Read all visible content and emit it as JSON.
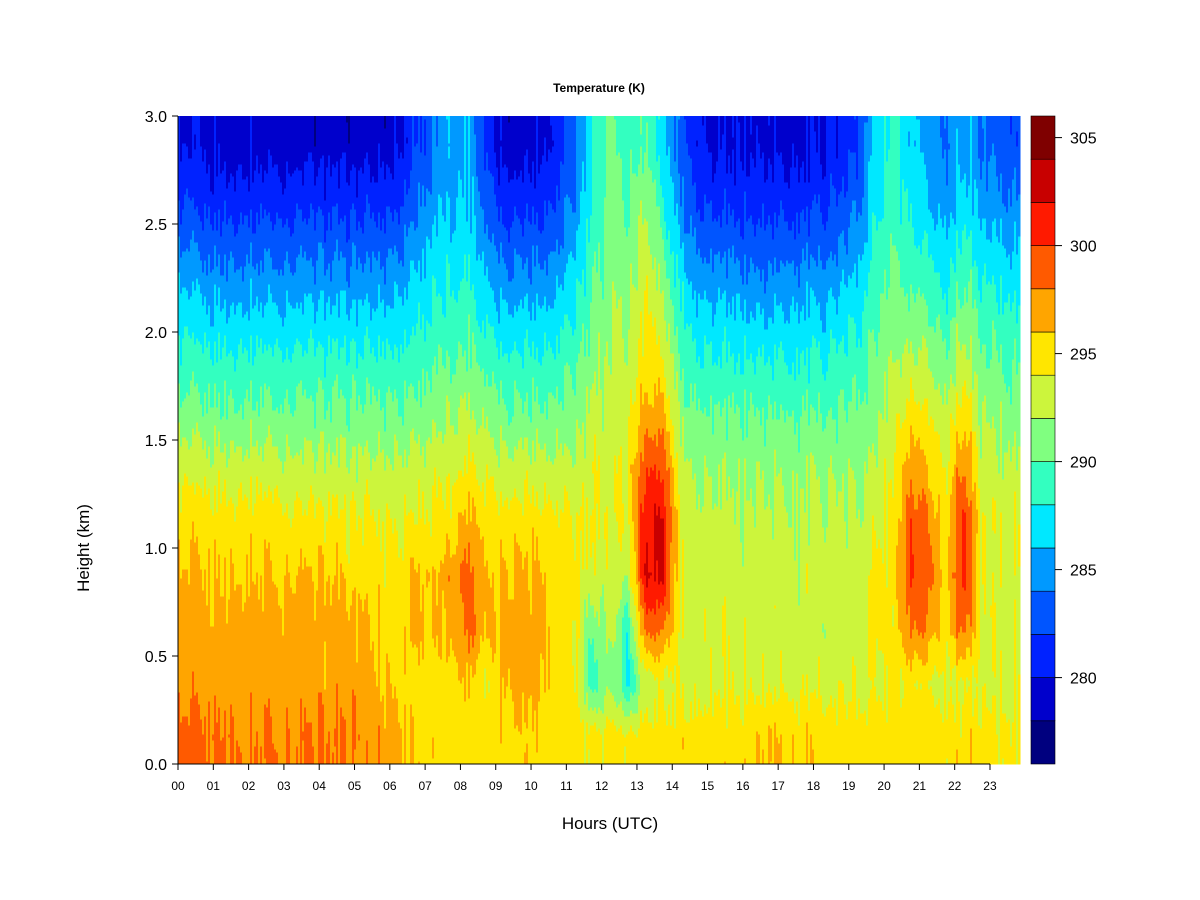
{
  "chart_data": {
    "type": "heatmap",
    "title": "Temperature (K)",
    "xlabel": "Hours (UTC)",
    "ylabel": "Height (km)",
    "xlim": [
      0,
      23.85
    ],
    "ylim": [
      0,
      3.0
    ],
    "grid": false,
    "xtick_values": [
      0,
      1,
      2,
      3,
      4,
      5,
      6,
      7,
      8,
      9,
      10,
      11,
      12,
      13,
      14,
      15,
      16,
      17,
      18,
      19,
      20,
      21,
      22,
      23
    ],
    "xtick_labels": [
      "00",
      "01",
      "02",
      "03",
      "04",
      "05",
      "06",
      "07",
      "08",
      "09",
      "10",
      "11",
      "12",
      "13",
      "14",
      "15",
      "16",
      "17",
      "18",
      "19",
      "20",
      "21",
      "22",
      "23"
    ],
    "ytick_values": [
      0,
      0.5,
      1.0,
      1.5,
      2.0,
      2.5,
      3.0
    ],
    "ytick_labels": [
      "0.0",
      "0.5",
      "1.0",
      "1.5",
      "2.0",
      "2.5",
      "3.0"
    ],
    "colorbar": {
      "placement": "right",
      "range": [
        276,
        306
      ],
      "levels": [
        276,
        278,
        280,
        282,
        284,
        286,
        288,
        290,
        292,
        294,
        296,
        298,
        300,
        302,
        304,
        306
      ],
      "colors": [
        "#00007f",
        "#0000cc",
        "#0022ff",
        "#0055ff",
        "#0099ff",
        "#00e8ff",
        "#33ffc0",
        "#80ff80",
        "#ccf53c",
        "#ffe600",
        "#ffa500",
        "#ff5a00",
        "#ff1a00",
        "#c80000",
        "#7f0000"
      ],
      "tick_values": [
        280,
        285,
        290,
        295,
        300,
        305
      ],
      "tick_labels": [
        "280",
        "285",
        "290",
        "295",
        "300",
        "305"
      ]
    },
    "time_hours": [
      0.25,
      0.75,
      1.25,
      1.75,
      2.25,
      2.75,
      3.25,
      3.75,
      4.25,
      4.75,
      5.25,
      5.75,
      6.25,
      6.75,
      7.25,
      7.75,
      8.25,
      8.75,
      9.25,
      9.75,
      10.25,
      10.75,
      11.25,
      11.75,
      12.25,
      12.75,
      13.25,
      13.75,
      14.25,
      14.75,
      15.25,
      15.75,
      16.25,
      16.75,
      17.25,
      17.75,
      18.25,
      18.75,
      19.25,
      19.75,
      20.25,
      20.75,
      21.25,
      21.75,
      22.25,
      22.75,
      23.25,
      23.75
    ],
    "height_km": [
      0.125,
      0.375,
      0.625,
      0.875,
      1.125,
      1.375,
      1.625,
      1.875,
      2.125,
      2.375,
      2.625,
      2.875
    ],
    "z_by_time_K": [
      [
        298.5,
        297,
        297,
        296,
        295,
        293,
        290.5,
        288.5,
        286.5,
        284,
        281.5,
        279.5
      ],
      [
        298.5,
        297,
        297,
        296,
        295,
        293,
        290.5,
        288.5,
        286,
        283.5,
        281,
        279.5
      ],
      [
        298.5,
        297,
        297,
        296,
        295,
        293,
        290.5,
        288.5,
        286,
        283.5,
        281,
        279
      ],
      [
        298,
        297,
        297,
        296,
        295,
        293,
        290.5,
        288.5,
        286,
        283.5,
        281,
        279
      ],
      [
        298,
        297,
        297,
        296,
        295,
        293,
        290.5,
        288.5,
        286,
        283.5,
        281,
        279
      ],
      [
        298,
        297,
        297,
        296,
        295,
        293,
        290.5,
        288.5,
        286,
        283.5,
        281,
        279
      ],
      [
        298,
        297,
        297,
        296,
        294.5,
        292.5,
        290.5,
        288.5,
        286,
        283.5,
        281,
        278.8
      ],
      [
        298,
        297,
        297,
        296,
        294.5,
        292.5,
        290.5,
        288.5,
        286,
        283.5,
        281,
        279
      ],
      [
        298,
        297,
        297,
        296,
        294.5,
        292.5,
        290.5,
        288.5,
        286,
        283.5,
        281,
        279
      ],
      [
        298,
        297,
        297,
        295.5,
        294.5,
        292.5,
        290.5,
        288.5,
        286,
        283.5,
        281,
        279
      ],
      [
        297.5,
        297,
        296.5,
        295,
        294.5,
        292.5,
        290.5,
        288.5,
        286,
        283.5,
        281,
        279
      ],
      [
        297.5,
        296,
        295.5,
        295,
        294,
        292.5,
        290.5,
        288.5,
        286,
        283.5,
        281,
        279
      ],
      [
        297,
        295.5,
        295,
        295,
        294,
        292.5,
        290.5,
        288.5,
        286.5,
        284,
        281.5,
        279.5
      ],
      [
        295.5,
        295,
        297,
        296.5,
        294.5,
        293,
        291,
        289,
        287.5,
        285.5,
        283.5,
        282
      ],
      [
        295,
        294.5,
        295.5,
        295.5,
        294,
        293,
        291,
        289.5,
        288,
        286.5,
        285,
        283.5
      ],
      [
        295,
        295,
        297,
        297.5,
        295,
        293.5,
        292,
        290,
        288.5,
        287,
        286,
        285.5
      ],
      [
        295,
        296,
        299,
        299,
        297,
        294.5,
        292.5,
        290.5,
        289,
        287.5,
        286.5,
        286
      ],
      [
        295,
        294,
        296,
        296,
        295,
        293.5,
        291.5,
        289.5,
        287,
        285,
        283,
        281
      ],
      [
        295.5,
        296.5,
        297,
        296.5,
        295,
        293,
        290.5,
        288.5,
        286,
        283.5,
        281,
        279
      ],
      [
        295.5,
        297,
        297,
        296.5,
        295,
        293,
        290.5,
        288.5,
        286,
        283.5,
        281,
        279
      ],
      [
        295.5,
        296.5,
        297,
        296.5,
        295,
        293,
        290.5,
        288.5,
        286,
        283.5,
        281,
        279.5
      ],
      [
        295,
        295,
        295,
        295,
        294.5,
        292.5,
        290.5,
        288.5,
        286.5,
        284,
        282,
        280.5
      ],
      [
        295,
        294.5,
        294.5,
        294.5,
        294,
        292.5,
        291,
        289.5,
        288,
        286,
        284.5,
        283.5
      ],
      [
        294.5,
        288.5,
        290,
        293,
        294,
        293.5,
        292.5,
        291,
        290,
        289,
        288,
        287.5
      ],
      [
        295,
        292,
        293,
        293.5,
        294,
        293.5,
        293,
        292.5,
        292,
        291.5,
        291,
        290.5
      ],
      [
        294.5,
        287.5,
        288.5,
        292,
        294,
        294,
        293.5,
        292.5,
        291.5,
        290.5,
        289.5,
        288.5
      ],
      [
        295,
        293,
        299,
        302.5,
        302,
        300,
        297,
        295,
        294.5,
        293.5,
        292,
        290
      ],
      [
        294.5,
        293.5,
        298,
        302,
        302,
        299.5,
        296.5,
        294,
        292,
        290,
        288,
        286.5
      ],
      [
        295,
        293.5,
        293.5,
        293.5,
        293.5,
        292.5,
        291,
        289.5,
        288,
        286,
        284,
        283
      ],
      [
        295,
        293.5,
        293.5,
        293.5,
        293,
        292,
        290.5,
        288.5,
        286.5,
        284,
        282,
        280.5
      ],
      [
        295,
        293.5,
        293.5,
        293,
        292.5,
        291.5,
        290,
        288,
        286,
        283.5,
        281,
        279.5
      ],
      [
        295,
        293.5,
        293.5,
        293,
        292.5,
        291.5,
        290,
        288,
        286,
        283.5,
        281,
        279.5
      ],
      [
        295.5,
        293.5,
        293,
        293,
        292.5,
        291.5,
        290,
        288,
        285.5,
        283,
        281,
        279.5
      ],
      [
        296,
        293.5,
        293,
        293,
        292.5,
        291.5,
        290,
        288,
        285.5,
        283,
        281,
        279.5
      ],
      [
        296,
        293.5,
        293,
        293,
        292.5,
        291.5,
        290,
        288,
        286,
        283.5,
        281,
        279.5
      ],
      [
        295.5,
        293.5,
        293,
        293,
        292.5,
        291.5,
        290,
        288,
        286,
        283.5,
        281,
        279.5
      ],
      [
        295,
        293.5,
        293,
        293,
        292.5,
        291.5,
        290,
        288,
        286,
        283.5,
        281.5,
        280
      ],
      [
        295,
        293.5,
        293,
        293,
        292.5,
        291.5,
        290,
        288.5,
        286.5,
        284,
        282,
        280.5
      ],
      [
        295,
        293.5,
        293,
        293,
        292.5,
        291.5,
        290.5,
        289,
        287.5,
        285.5,
        283.5,
        282
      ],
      [
        295,
        293.5,
        295,
        294.5,
        293.5,
        292.5,
        291.5,
        290.5,
        289.5,
        288.5,
        287.5,
        287
      ],
      [
        295,
        294,
        294.5,
        294.5,
        294.5,
        294,
        293,
        292,
        291,
        290,
        289,
        288.5
      ],
      [
        295,
        294,
        298,
        299.5,
        299,
        297,
        294.5,
        292,
        290,
        288,
        287,
        286
      ],
      [
        295,
        294,
        297.5,
        299,
        298,
        296,
        294,
        292,
        290,
        288,
        286,
        285
      ],
      [
        295,
        293.5,
        295,
        295.5,
        295,
        294,
        292.5,
        290.5,
        288.5,
        286.5,
        285,
        284
      ],
      [
        295,
        294,
        299,
        301.5,
        301,
        298.5,
        295.5,
        293,
        291,
        289,
        287,
        286
      ],
      [
        295,
        293.5,
        294,
        294,
        294,
        293,
        292,
        290.5,
        289,
        287,
        285,
        284
      ],
      [
        294.5,
        293.5,
        293.5,
        293.5,
        293.5,
        292.5,
        291.5,
        290,
        288.5,
        286.5,
        284.5,
        283
      ],
      [
        294.5,
        293.5,
        293.5,
        293.5,
        293.5,
        292.5,
        291,
        289.5,
        288,
        286,
        284,
        282.5
      ]
    ]
  }
}
